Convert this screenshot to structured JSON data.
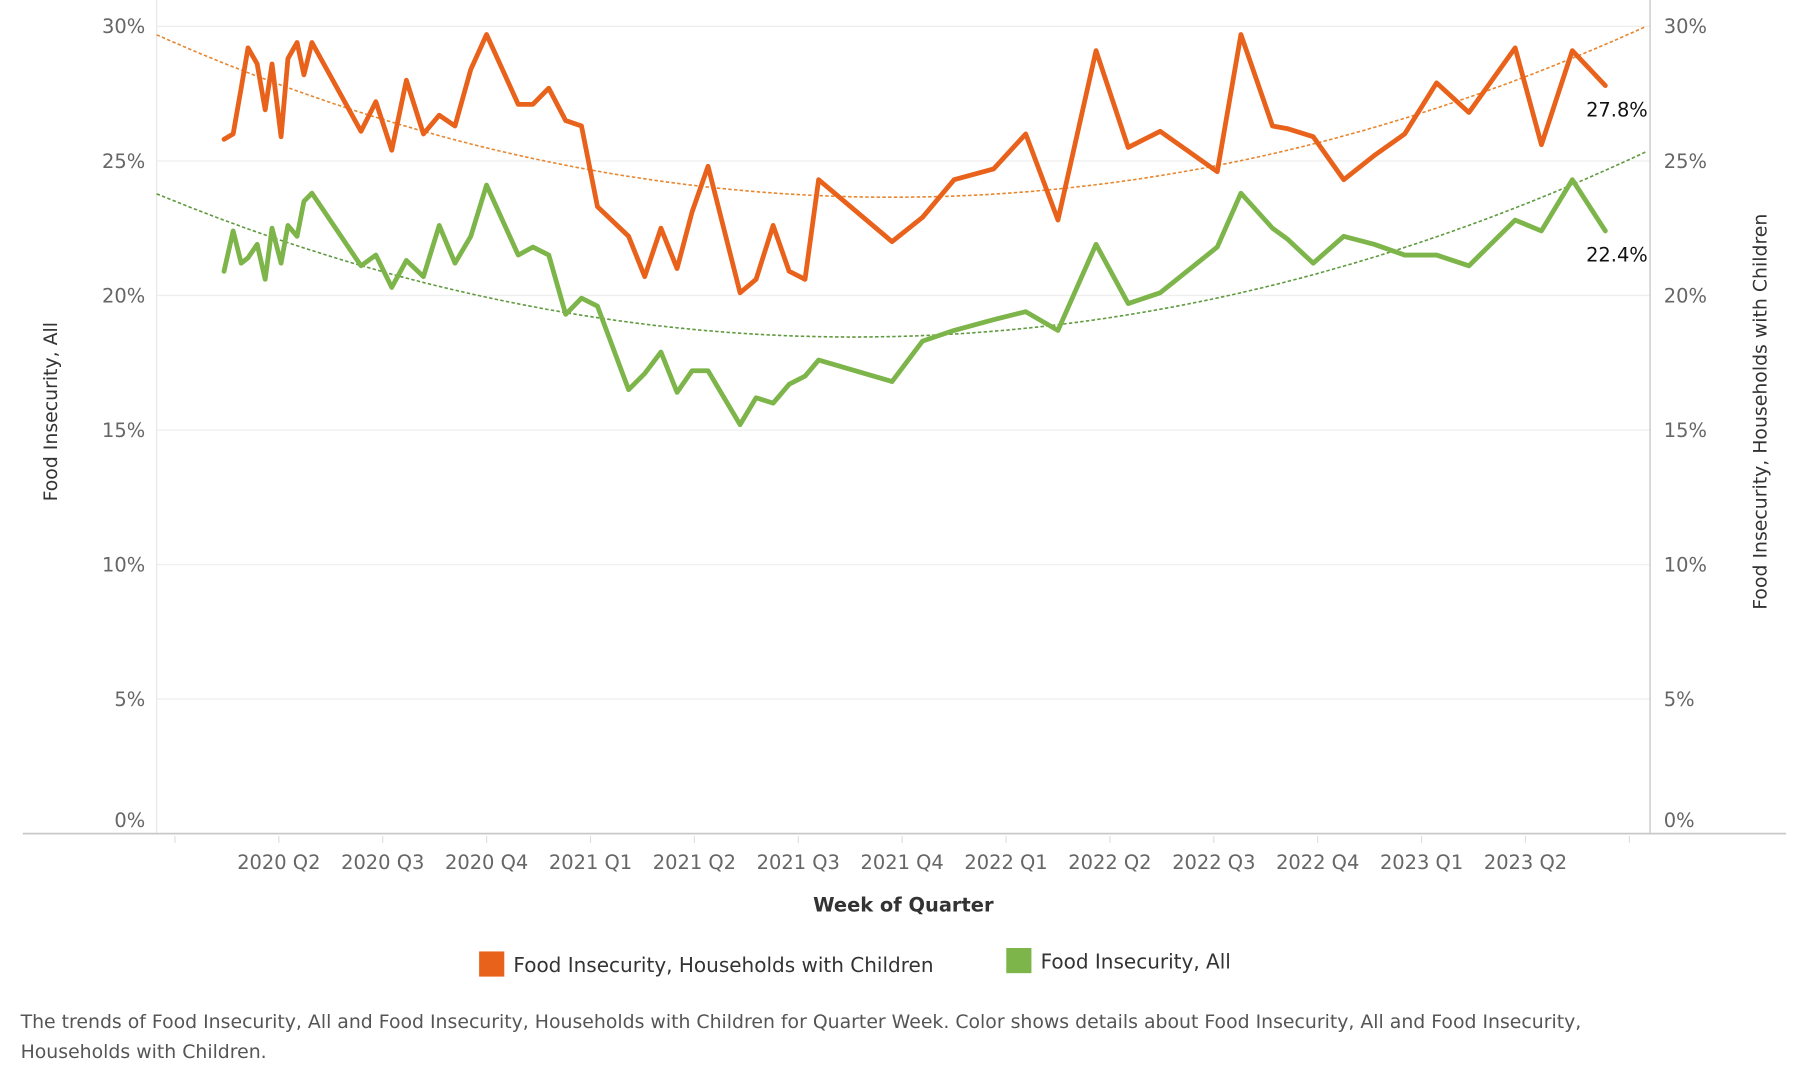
{
  "chart_data": {
    "type": "line",
    "title": "",
    "xlabel": "Week of Quarter",
    "ylabel_left": "Food Insecurity, All",
    "ylabel_right": "Food Insecurity, Households with Children",
    "ylim": [
      0,
      30
    ],
    "y_ticks": [
      "0%",
      "5%",
      "10%",
      "15%",
      "20%",
      "25%",
      "30%"
    ],
    "y_tick_values": [
      0,
      5,
      10,
      15,
      20,
      25,
      30
    ],
    "x_ticks": [
      "2020 Q2",
      "2020 Q3",
      "2020 Q4",
      "2021 Q1",
      "2021 Q2",
      "2021 Q3",
      "2021 Q4",
      "2022 Q1",
      "2022 Q2",
      "2022 Q3",
      "2022 Q4",
      "2023 Q1",
      "2023 Q2"
    ],
    "grid": true,
    "legend_position": "bottom",
    "trend_lines": "quadratic, dotted, one per series",
    "x": [
      "2020-02-13",
      "2020-02-21",
      "2020-02-28",
      "2020-03-05",
      "2020-03-13",
      "2020-03-20",
      "2020-03-26",
      "2020-04-03",
      "2020-04-09",
      "2020-04-17",
      "2020-04-23",
      "2020-04-30",
      "2020-06-12",
      "2020-06-25",
      "2020-07-09",
      "2020-07-22",
      "2020-08-06",
      "2020-08-20",
      "2020-09-03",
      "2020-09-17",
      "2020-10-01",
      "2020-10-29",
      "2020-11-11",
      "2020-11-25",
      "2020-12-10",
      "2020-12-24",
      "2021-01-07",
      "2021-02-03",
      "2021-02-17",
      "2021-03-03",
      "2021-03-17",
      "2021-03-30",
      "2021-04-13",
      "2021-05-11",
      "2021-05-25",
      "2021-06-09",
      "2021-06-23",
      "2021-07-07",
      "2021-07-19",
      "2021-09-22",
      "2021-10-19",
      "2021-11-16",
      "2021-12-21",
      "2022-01-18",
      "2022-02-15",
      "2022-03-20",
      "2022-04-17",
      "2022-05-15",
      "2022-07-04",
      "2022-07-25",
      "2022-08-22",
      "2022-09-04",
      "2022-09-27",
      "2022-10-24",
      "2022-11-20",
      "2022-12-17",
      "2023-01-14",
      "2023-02-11",
      "2023-03-23",
      "2023-04-15",
      "2023-05-12",
      "2023-06-10"
    ],
    "series": [
      {
        "name": "Food Insecurity, Households with Children",
        "color": "#E9621C",
        "trend_color": "#E8862E",
        "end_label": "27.8%",
        "values": [
          25.8,
          26.0,
          27.7,
          29.2,
          28.6,
          26.9,
          28.6,
          25.9,
          28.8,
          29.4,
          28.2,
          29.4,
          26.1,
          27.2,
          25.4,
          28.0,
          26.0,
          26.7,
          26.3,
          28.4,
          29.7,
          27.1,
          27.1,
          27.7,
          26.5,
          26.3,
          23.3,
          22.2,
          20.7,
          22.5,
          21.0,
          23.1,
          24.8,
          20.1,
          20.6,
          22.6,
          20.9,
          20.6,
          24.3,
          22.0,
          22.9,
          24.3,
          24.7,
          26.0,
          22.8,
          29.1,
          25.5,
          26.1,
          24.6,
          29.7,
          26.3,
          26.2,
          25.9,
          24.3,
          25.2,
          26.0,
          27.9,
          26.8,
          29.2,
          25.6,
          29.1,
          27.8
        ]
      },
      {
        "name": "Food Insecurity, All",
        "color": "#7DB54A",
        "trend_color": "#5F9A3E",
        "end_label": "22.4%",
        "values": [
          20.9,
          22.4,
          21.2,
          21.4,
          21.9,
          20.6,
          22.5,
          21.2,
          22.6,
          22.2,
          23.5,
          23.8,
          21.1,
          21.5,
          20.3,
          21.3,
          20.7,
          22.6,
          21.2,
          22.2,
          24.1,
          21.5,
          21.8,
          21.5,
          19.3,
          19.9,
          19.6,
          16.5,
          17.1,
          17.9,
          16.4,
          17.2,
          17.2,
          15.2,
          16.2,
          16.0,
          16.7,
          17.0,
          17.6,
          16.8,
          18.3,
          18.7,
          19.1,
          19.4,
          18.7,
          21.9,
          19.7,
          20.1,
          21.8,
          23.8,
          22.5,
          22.1,
          21.2,
          22.2,
          21.9,
          21.5,
          21.5,
          21.1,
          22.8,
          22.4,
          24.3,
          22.4
        ]
      }
    ]
  },
  "legend": {
    "items": [
      {
        "label": "Food Insecurity, Households with Children",
        "color": "#E9621C"
      },
      {
        "label": "Food Insecurity, All",
        "color": "#7DB54A"
      }
    ]
  },
  "caption": {
    "line1": "The trends of Food Insecurity, All and Food Insecurity, Households with Children for Quarter Week.  Color shows details about Food Insecurity, All and Food Insecurity,",
    "line2": "Households with Children."
  }
}
